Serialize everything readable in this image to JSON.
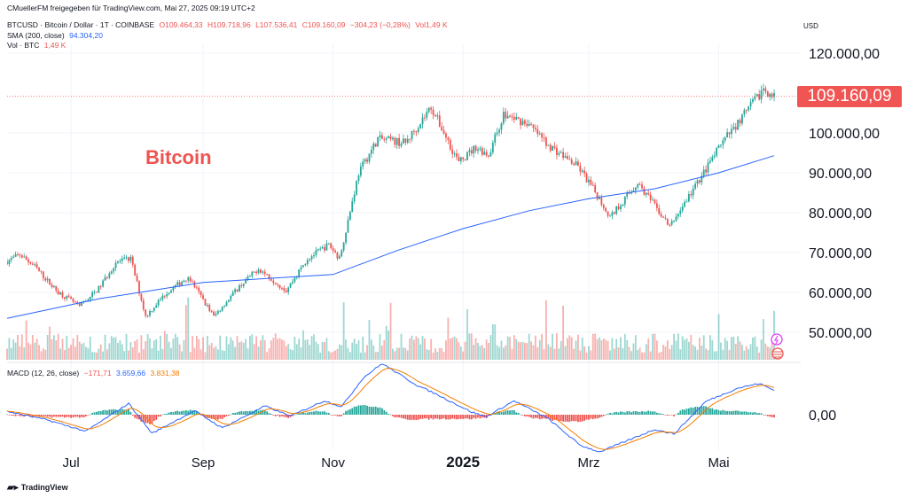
{
  "header": {
    "attribution": "CMuellerFM freigegeben für TradingView.com, Mai 27, 2025 09:19 UTC+2",
    "symbol_line": "BTCUSD · Bitcoin / Dollar · 1T · COINBASE",
    "ohlc": {
      "o": "O109.464,33",
      "h": "H109.718,96",
      "l": "L107.536,41",
      "c": "C109.160,09",
      "chg": "−304,23 (−0,28%)",
      "vol": "Vol1,49 K"
    },
    "sma_label": "SMA (200, close)",
    "sma_value": "94.304,20",
    "vol_label": "Vol · BTC",
    "vol_value": "1,49 K",
    "macd_label": "MACD (12, 26, close)",
    "macd_hist": "−171,71",
    "macd_line": "3.659,66",
    "macd_signal": "3.831,38"
  },
  "currency": "USD",
  "annotation": "Bitcoin",
  "last_price": "109.160,09",
  "watermark": "TradingView",
  "colors": {
    "up": "#26a69a",
    "down": "#ef5350",
    "sma": "#2962ff",
    "macd": "#2962ff",
    "signal": "#f57c00",
    "annotation": "#ef5350"
  },
  "chart_data": {
    "type": "candlestick",
    "ylim": [
      43000,
      127000
    ],
    "y_ticks": [
      50000,
      60000,
      70000,
      80000,
      90000,
      100000,
      120000
    ],
    "y_tick_labels": [
      "50.000,00",
      "60.000,00",
      "70.000,00",
      "80.000,00",
      "90.000,00",
      "100.000,00",
      "120.000,00"
    ],
    "x_ticks": [
      "2024-07-01",
      "2024-09-01",
      "2024-11-01",
      "2025-01-01",
      "2025-03-01",
      "2025-05-01"
    ],
    "x_tick_labels": [
      "Jul",
      "Sep",
      "Nov",
      "2025",
      "Mrz",
      "Mai"
    ],
    "x_range": [
      "2024-06-01",
      "2025-05-27"
    ],
    "close_anchors": [
      [
        "2024-06-01",
        67800
      ],
      [
        "2024-06-07",
        69500
      ],
      [
        "2024-06-14",
        66500
      ],
      [
        "2024-06-24",
        60500
      ],
      [
        "2024-07-05",
        56500
      ],
      [
        "2024-07-14",
        61000
      ],
      [
        "2024-07-22",
        67500
      ],
      [
        "2024-07-29",
        68500
      ],
      [
        "2024-08-05",
        54000
      ],
      [
        "2024-08-14",
        59500
      ],
      [
        "2024-08-25",
        64000
      ],
      [
        "2024-09-06",
        54000
      ],
      [
        "2024-09-18",
        61500
      ],
      [
        "2024-09-27",
        66000
      ],
      [
        "2024-10-10",
        60500
      ],
      [
        "2024-10-20",
        68500
      ],
      [
        "2024-10-30",
        72000
      ],
      [
        "2024-11-04",
        68500
      ],
      [
        "2024-11-13",
        90000
      ],
      [
        "2024-11-22",
        98500
      ],
      [
        "2024-12-05",
        97500
      ],
      [
        "2024-12-17",
        106500
      ],
      [
        "2024-12-30",
        92500
      ],
      [
        "2025-01-07",
        96500
      ],
      [
        "2025-01-13",
        94500
      ],
      [
        "2025-01-20",
        104500
      ],
      [
        "2025-01-31",
        102500
      ],
      [
        "2025-02-10",
        97000
      ],
      [
        "2025-02-24",
        91500
      ],
      [
        "2025-03-03",
        86000
      ],
      [
        "2025-03-11",
        79000
      ],
      [
        "2025-03-24",
        87500
      ],
      [
        "2025-04-08",
        76500
      ],
      [
        "2025-04-21",
        87500
      ],
      [
        "2025-05-02",
        97000
      ],
      [
        "2025-05-12",
        104000
      ],
      [
        "2025-05-22",
        111000
      ],
      [
        "2025-05-27",
        109160
      ]
    ],
    "sma200_anchors": [
      [
        "2024-06-01",
        53500
      ],
      [
        "2024-07-15",
        58500
      ],
      [
        "2024-09-01",
        62500
      ],
      [
        "2024-10-01",
        63500
      ],
      [
        "2024-11-01",
        64500
      ],
      [
        "2024-12-01",
        70500
      ],
      [
        "2025-01-01",
        76000
      ],
      [
        "2025-02-01",
        80500
      ],
      [
        "2025-03-01",
        83500
      ],
      [
        "2025-04-01",
        86000
      ],
      [
        "2025-05-01",
        90000
      ],
      [
        "2025-05-27",
        94300
      ]
    ],
    "macd_anchors": [
      [
        "2024-06-01",
        500
      ],
      [
        "2024-06-20",
        -800
      ],
      [
        "2024-07-08",
        -2500
      ],
      [
        "2024-07-28",
        1700
      ],
      [
        "2024-08-08",
        -2800
      ],
      [
        "2024-08-28",
        600
      ],
      [
        "2024-09-10",
        -2000
      ],
      [
        "2024-09-30",
        1300
      ],
      [
        "2024-10-12",
        -200
      ],
      [
        "2024-10-28",
        2100
      ],
      [
        "2024-11-05",
        1200
      ],
      [
        "2024-11-15",
        5500
      ],
      [
        "2024-11-24",
        7700
      ],
      [
        "2024-12-10",
        4500
      ],
      [
        "2024-12-20",
        3000
      ],
      [
        "2025-01-05",
        400
      ],
      [
        "2025-01-12",
        -300
      ],
      [
        "2025-01-25",
        2100
      ],
      [
        "2025-02-10",
        -600
      ],
      [
        "2025-02-25",
        -4600
      ],
      [
        "2025-03-06",
        -5600
      ],
      [
        "2025-03-20",
        -3800
      ],
      [
        "2025-04-01",
        -2200
      ],
      [
        "2025-04-10",
        -2900
      ],
      [
        "2025-04-25",
        2000
      ],
      [
        "2025-05-10",
        4000
      ],
      [
        "2025-05-20",
        4700
      ],
      [
        "2025-05-27",
        3660
      ]
    ],
    "macd_ylim": [
      -7500,
      9000
    ]
  }
}
